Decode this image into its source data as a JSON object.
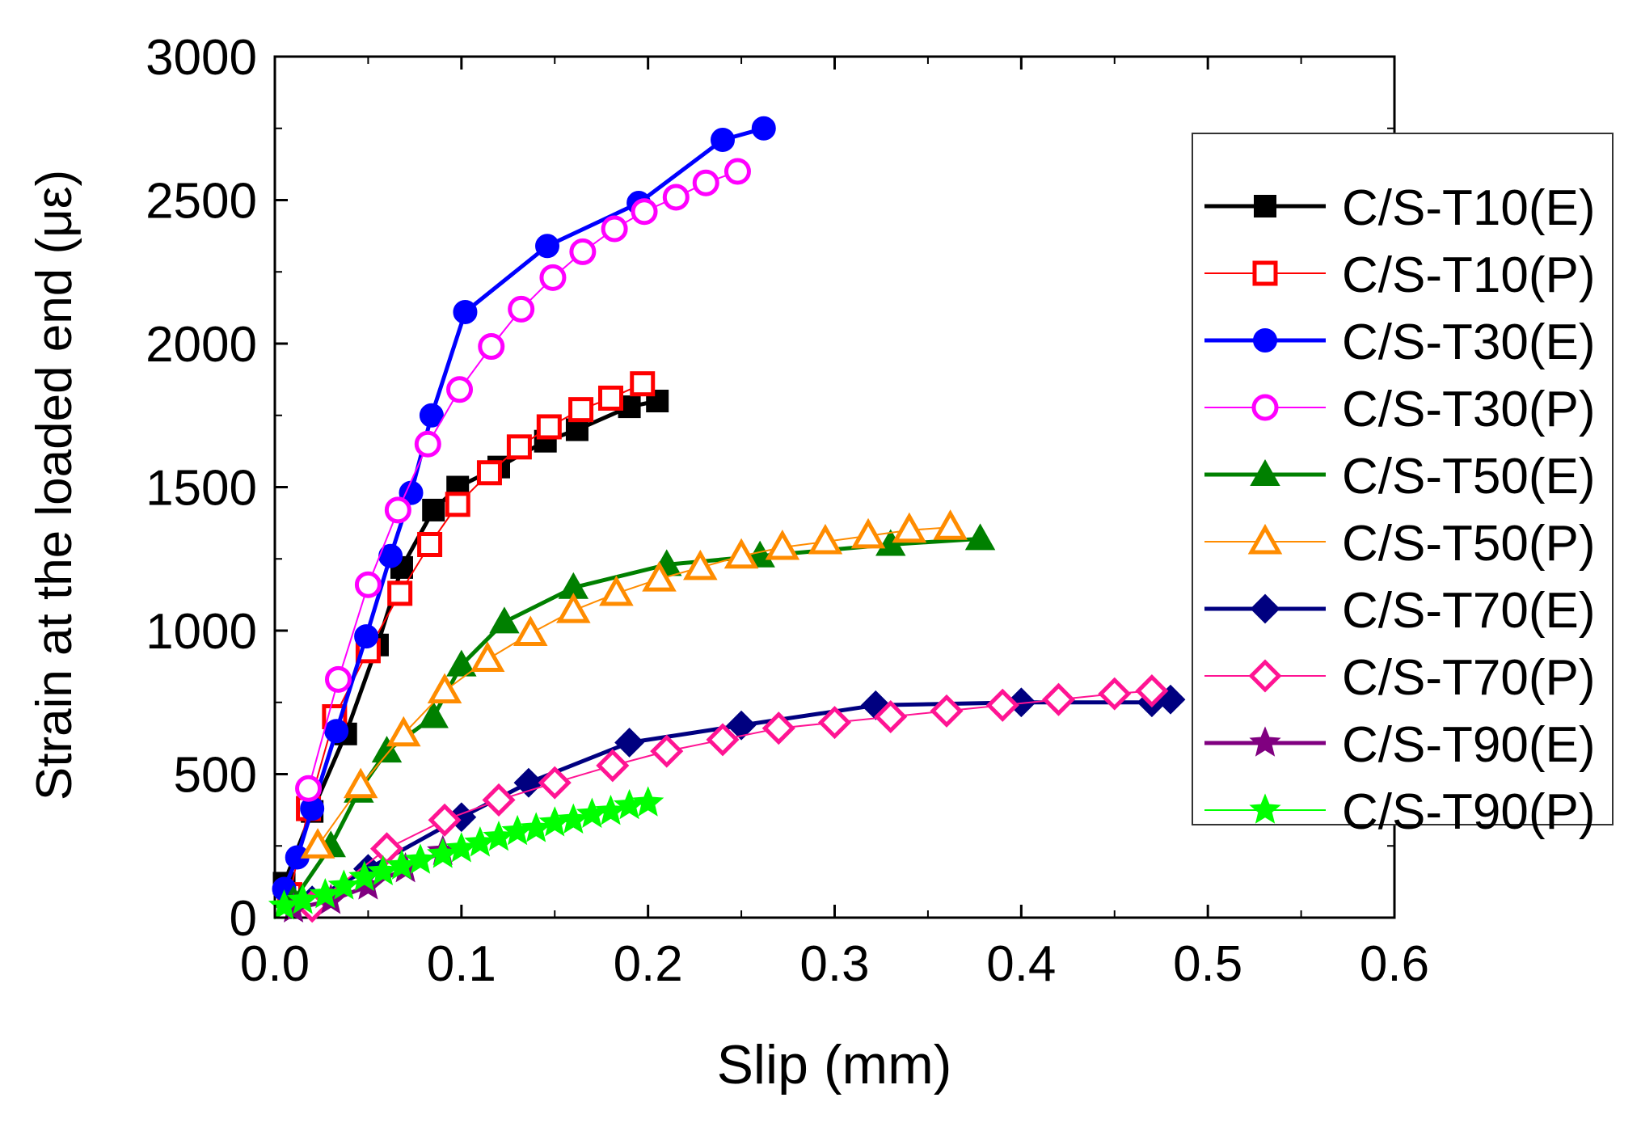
{
  "chart_data": {
    "type": "line",
    "title": "",
    "xlabel": "Slip (mm)",
    "ylabel": "Strain at the loaded end (με)",
    "xlim": [
      0,
      0.6
    ],
    "ylim": [
      0,
      3000
    ],
    "xticks": [
      "0.0",
      "0.1",
      "0.2",
      "0.3",
      "0.4",
      "0.5",
      "0.6"
    ],
    "yticks": [
      "0",
      "500",
      "1000",
      "1500",
      "2000",
      "2500",
      "3000"
    ],
    "legend_position": "right",
    "series": [
      {
        "name": "C/S-T10(E)",
        "color": "#000000",
        "marker": "square",
        "filled": true,
        "line_style": "thick",
        "x": [
          0.005,
          0.02,
          0.038,
          0.055,
          0.068,
          0.085,
          0.098,
          0.12,
          0.145,
          0.162,
          0.19,
          0.205
        ],
        "y": [
          120,
          370,
          640,
          950,
          1220,
          1420,
          1500,
          1570,
          1660,
          1700,
          1780,
          1800
        ]
      },
      {
        "name": "C/S-T10(P)",
        "color": "#ff0000",
        "marker": "square",
        "filled": false,
        "line_style": "thin",
        "x": [
          0.008,
          0.018,
          0.032,
          0.05,
          0.067,
          0.083,
          0.098,
          0.115,
          0.131,
          0.147,
          0.164,
          0.18,
          0.197
        ],
        "y": [
          80,
          380,
          700,
          930,
          1130,
          1300,
          1440,
          1550,
          1640,
          1710,
          1770,
          1810,
          1860
        ]
      },
      {
        "name": "C/S-T30(E)",
        "color": "#0000ff",
        "marker": "circle",
        "filled": true,
        "line_style": "thick",
        "x": [
          0.005,
          0.012,
          0.02,
          0.033,
          0.049,
          0.062,
          0.073,
          0.084,
          0.102,
          0.146,
          0.195,
          0.24,
          0.262
        ],
        "y": [
          100,
          210,
          380,
          650,
          980,
          1260,
          1480,
          1750,
          2110,
          2340,
          2490,
          2710,
          2750
        ]
      },
      {
        "name": "C/S-T30(P)",
        "color": "#ff00ff",
        "marker": "circle",
        "filled": false,
        "line_style": "thin",
        "x": [
          0.018,
          0.034,
          0.05,
          0.066,
          0.082,
          0.099,
          0.116,
          0.132,
          0.149,
          0.165,
          0.182,
          0.198,
          0.215,
          0.231,
          0.248
        ],
        "y": [
          450,
          830,
          1160,
          1420,
          1650,
          1840,
          1990,
          2120,
          2230,
          2320,
          2400,
          2460,
          2510,
          2560,
          2600
        ]
      },
      {
        "name": "C/S-T50(E)",
        "color": "#008000",
        "marker": "triangle",
        "filled": true,
        "line_style": "thick",
        "x": [
          0.01,
          0.03,
          0.045,
          0.06,
          0.085,
          0.1,
          0.123,
          0.16,
          0.21,
          0.26,
          0.33,
          0.378
        ],
        "y": [
          60,
          250,
          440,
          580,
          700,
          880,
          1030,
          1150,
          1230,
          1260,
          1300,
          1320
        ]
      },
      {
        "name": "C/S-T50(P)",
        "color": "#ff8c00",
        "marker": "triangle",
        "filled": false,
        "line_style": "thin",
        "x": [
          0.023,
          0.046,
          0.069,
          0.091,
          0.114,
          0.137,
          0.16,
          0.183,
          0.206,
          0.228,
          0.25,
          0.272,
          0.295,
          0.318,
          0.34,
          0.362
        ],
        "y": [
          250,
          460,
          640,
          790,
          900,
          990,
          1070,
          1130,
          1180,
          1220,
          1260,
          1290,
          1310,
          1330,
          1350,
          1360
        ]
      },
      {
        "name": "C/S-T70(E)",
        "color": "#000080",
        "marker": "diamond",
        "filled": true,
        "line_style": "thick",
        "x": [
          0.02,
          0.05,
          0.1,
          0.136,
          0.19,
          0.25,
          0.322,
          0.4,
          0.47,
          0.48
        ],
        "y": [
          60,
          170,
          350,
          470,
          610,
          670,
          740,
          750,
          750,
          760
        ]
      },
      {
        "name": "C/S-T70(P)",
        "color": "#ff1493",
        "marker": "diamond",
        "filled": false,
        "line_style": "thin",
        "x": [
          0.02,
          0.06,
          0.091,
          0.12,
          0.15,
          0.181,
          0.21,
          0.24,
          0.27,
          0.3,
          0.33,
          0.36,
          0.39,
          0.42,
          0.45,
          0.47
        ],
        "y": [
          40,
          240,
          340,
          410,
          470,
          530,
          580,
          620,
          660,
          680,
          700,
          720,
          740,
          760,
          780,
          790
        ]
      },
      {
        "name": "C/S-T90(E)",
        "color": "#800080",
        "marker": "star",
        "filled": true,
        "line_style": "thick",
        "x": [
          0.01,
          0.03,
          0.05,
          0.07,
          0.09
        ],
        "y": [
          30,
          60,
          110,
          170,
          230
        ]
      },
      {
        "name": "C/S-T90(P)",
        "color": "#00ff00",
        "marker": "star",
        "filled": true,
        "line_style": "thin",
        "x": [
          0.005,
          0.015,
          0.027,
          0.037,
          0.048,
          0.058,
          0.068,
          0.078,
          0.09,
          0.1,
          0.11,
          0.12,
          0.13,
          0.14,
          0.15,
          0.16,
          0.17,
          0.18,
          0.19,
          0.2
        ],
        "y": [
          40,
          60,
          80,
          110,
          140,
          160,
          180,
          200,
          220,
          240,
          260,
          280,
          300,
          310,
          330,
          340,
          360,
          370,
          390,
          400
        ]
      }
    ]
  }
}
